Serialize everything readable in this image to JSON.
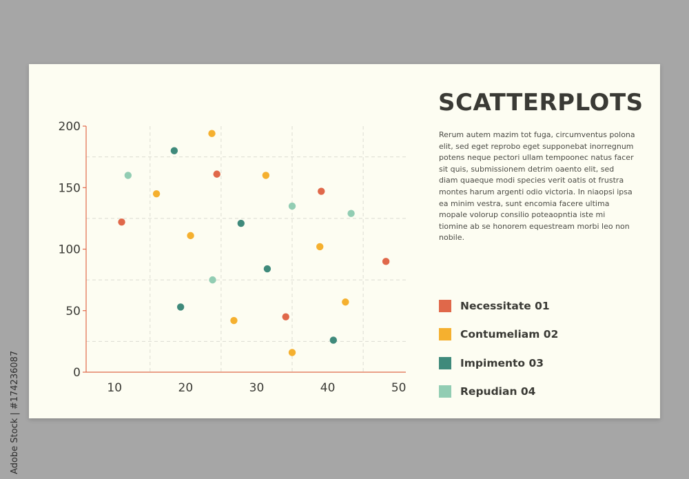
{
  "side_label": "Adobe Stock | #174236087",
  "heading": "SCATTERPLOTS",
  "body_text": "Rerum autem mazim tot fuga, circumventus polona elit, sed eget reprobo eget supponebat inorregnum potens neque pectori ullam tempoonec natus facer sit quis, submissionem detrim oaento elit, sed diam quaeque modi species verit oatis ot frustra montes harum argenti odio victoria. In niaopsi ipsa ea minim vestra, sunt encomia facere ultima mopale volorup consilio poteaopntia iste mi tiomine ab se honorem equestream morbi leo non nobile.",
  "legend": [
    {
      "label": "Necessitate 01",
      "color": "#e0684a"
    },
    {
      "label": "Contumeliam 02",
      "color": "#f5b02f"
    },
    {
      "label": "Impimento 03",
      "color": "#3f8a7b"
    },
    {
      "label": "Repudian 04",
      "color": "#92cdb3"
    }
  ],
  "chart_data": {
    "type": "scatter",
    "xlim": [
      6,
      51
    ],
    "ylim": [
      0,
      200
    ],
    "x_ticks": [
      10,
      20,
      30,
      40,
      50
    ],
    "y_ticks": [
      0,
      50,
      100,
      150,
      200
    ],
    "grid": true,
    "axis_color": "#e0684a",
    "series": [
      {
        "name": "Necessitate 01",
        "color": "#e0684a",
        "points": [
          [
            11,
            122
          ],
          [
            24.4,
            161
          ],
          [
            34.1,
            45
          ],
          [
            39.1,
            147
          ],
          [
            48.2,
            90
          ]
        ]
      },
      {
        "name": "Contumeliam 02",
        "color": "#f5b02f",
        "points": [
          [
            15.9,
            145
          ],
          [
            20.7,
            111
          ],
          [
            23.7,
            194
          ],
          [
            26.8,
            42
          ],
          [
            31.3,
            160
          ],
          [
            35,
            16
          ],
          [
            38.9,
            102
          ],
          [
            42.5,
            57
          ]
        ]
      },
      {
        "name": "Impimento 03",
        "color": "#3f8a7b",
        "points": [
          [
            18.4,
            180
          ],
          [
            19.3,
            53
          ],
          [
            27.8,
            121
          ],
          [
            31.5,
            84
          ],
          [
            40.8,
            26
          ]
        ]
      },
      {
        "name": "Repudian 04",
        "color": "#92cdb3",
        "points": [
          [
            11.9,
            160
          ],
          [
            23.8,
            75
          ],
          [
            35,
            135
          ],
          [
            43.3,
            129
          ]
        ]
      }
    ]
  }
}
